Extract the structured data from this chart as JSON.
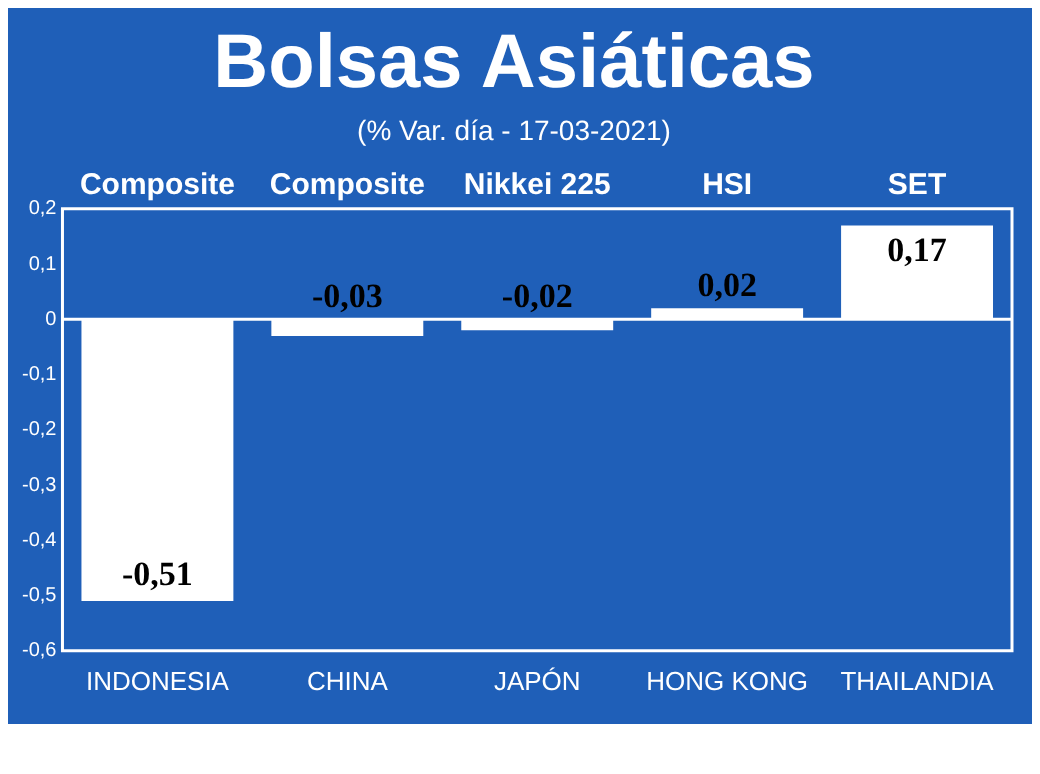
{
  "chart_data": {
    "type": "bar",
    "title": "Bolsas Asiáticas",
    "subtitle": "(% Var. día - 17-03-2021)",
    "categories": [
      "INDONESIA",
      "CHINA",
      "JAPÓN",
      "HONG KONG",
      "THAILANDIA"
    ],
    "values": [
      -0.51,
      -0.03,
      -0.02,
      0.02,
      0.17
    ],
    "color": "#ffffff",
    "ylim": [
      -0.6,
      0.2
    ],
    "yticks": [
      {
        "value": -0.6,
        "label": "-0,6"
      },
      {
        "value": -0.5,
        "label": "-0,5"
      },
      {
        "value": -0.4,
        "label": "-0,4"
      },
      {
        "value": -0.3,
        "label": "-0,3"
      },
      {
        "value": -0.2,
        "label": "-0,2"
      },
      {
        "value": -0.1,
        "label": "-0,1"
      },
      {
        "value": 0,
        "label": "0"
      },
      {
        "value": 0.1,
        "label": "0,1"
      },
      {
        "value": 0.2,
        "label": "0,2"
      }
    ],
    "value_labels": [
      "-0,51",
      "-0,03",
      "-0,02",
      "0,02",
      "0,17"
    ],
    "annotations": [
      "Composite",
      "Composite",
      "Nikkei 225",
      "HSI",
      "SET"
    ],
    "ref_lines": [
      {
        "axis": "y",
        "value": 0,
        "color": "#ffffff"
      }
    ],
    "legend": false
  }
}
